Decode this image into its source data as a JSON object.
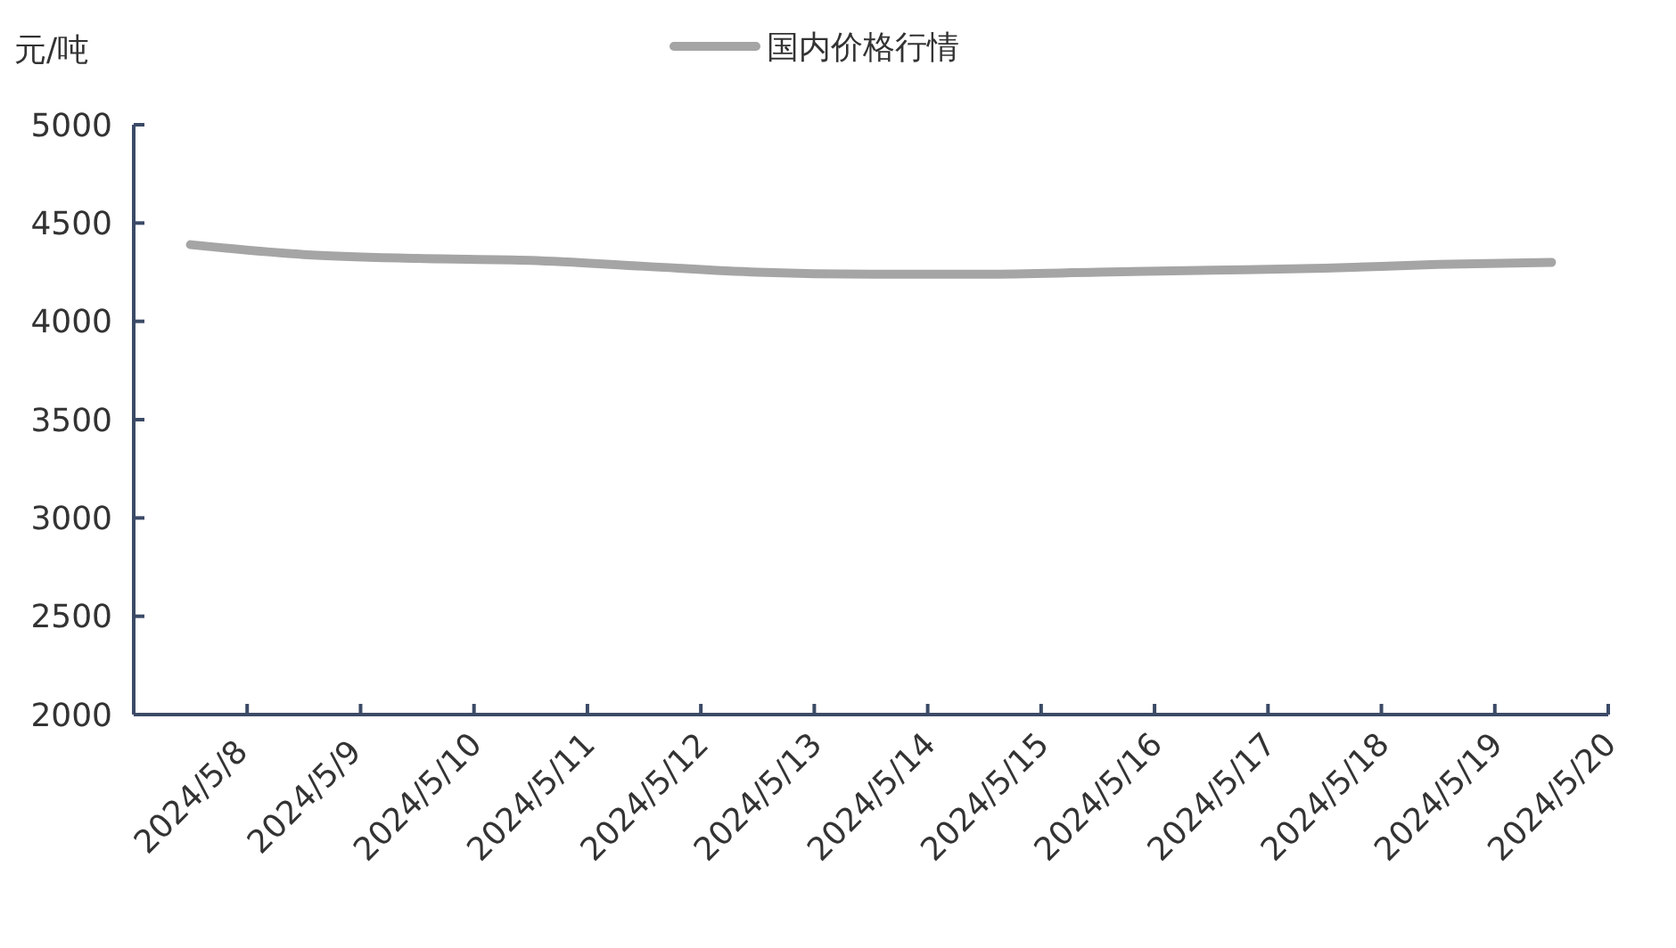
{
  "chart_data": {
    "type": "line",
    "ylabel": "元/吨",
    "categories": [
      "2024/5/8",
      "2024/5/9",
      "2024/5/10",
      "2024/5/11",
      "2024/5/12",
      "2024/5/13",
      "2024/5/14",
      "2024/5/15",
      "2024/5/16",
      "2024/5/17",
      "2024/5/18",
      "2024/5/19",
      "2024/5/20"
    ],
    "series": [
      {
        "name": "国内价格行情",
        "color": "#a5a5a5",
        "values": [
          4390,
          4340,
          4320,
          4310,
          4280,
          4250,
          4240,
          4240,
          4250,
          4260,
          4270,
          4290,
          4300
        ]
      }
    ],
    "ylim": [
      2000,
      5000
    ],
    "yticks": [
      2000,
      2500,
      3000,
      3500,
      4000,
      4500,
      5000
    ],
    "grid": false,
    "legend": "top",
    "marker": "none",
    "line_style": "solid"
  }
}
